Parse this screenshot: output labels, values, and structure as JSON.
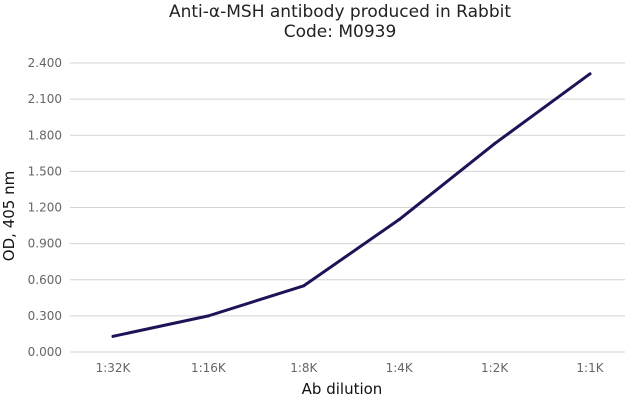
{
  "chart_data": {
    "type": "line",
    "title": "Anti-α-MSH antibody produced in Rabbit",
    "subtitle": "Code: M0939",
    "xlabel": "Ab dilution",
    "ylabel": "OD, 405 nm",
    "categories": [
      "1:32K",
      "1:16K",
      "1:8K",
      "1:4K",
      "1:2K",
      "1:1K"
    ],
    "series": [
      {
        "values": [
          0.13,
          0.3,
          0.55,
          1.1,
          1.73,
          2.31
        ],
        "color": "#1c1456"
      }
    ],
    "ylim": [
      0,
      2.4
    ],
    "yticks": [
      "0.000",
      "0.300",
      "0.600",
      "0.900",
      "1.200",
      "1.500",
      "1.800",
      "2.100",
      "2.400"
    ],
    "grid": true,
    "legend": "none"
  }
}
